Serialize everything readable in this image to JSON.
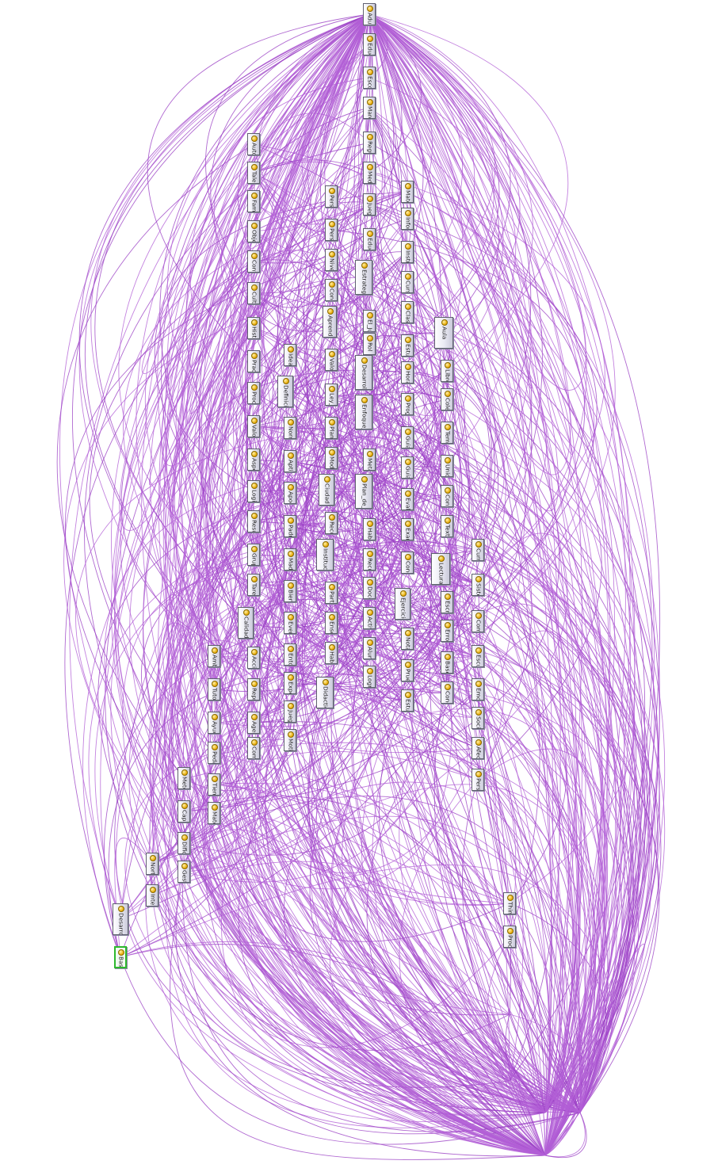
{
  "colors": {
    "edge": "#b25fd6",
    "edge_dark": "#9a3fc4",
    "node_border": "#606070",
    "highlight_border": "#2eb82e",
    "icon": "#e8a800"
  },
  "icon_name": "owl-class-icon",
  "nodes": [
    {
      "id": "n0",
      "label": "Adulto"
    },
    {
      "id": "n1",
      "label": "Educar"
    },
    {
      "id": "n2",
      "label": "Escolar"
    },
    {
      "id": "n3",
      "label": "Marco"
    },
    {
      "id": "n4",
      "label": "Regulatorio"
    },
    {
      "id": "n5",
      "label": "Medio"
    },
    {
      "id": "n6",
      "label": "Juego"
    },
    {
      "id": "n7",
      "label": "Educacion"
    },
    {
      "id": "n8",
      "label": "Estrategia_de_la_Clase"
    },
    {
      "id": "n9",
      "label": "El_Juego"
    },
    {
      "id": "n10",
      "label": "Rol"
    },
    {
      "id": "n11",
      "label": "Desarrollo_en_el_Aula"
    },
    {
      "id": "n12",
      "label": "Enfoque_de_la_Escuela_Basica"
    },
    {
      "id": "n13",
      "label": "Meta"
    },
    {
      "id": "n14",
      "label": "Plan_de_Enseñanza"
    },
    {
      "id": "n15",
      "label": "Habito"
    },
    {
      "id": "n16",
      "label": "Recurso"
    },
    {
      "id": "n17",
      "label": "Docente"
    },
    {
      "id": "n18",
      "label": "Actividad"
    },
    {
      "id": "n19",
      "label": "Alumno"
    },
    {
      "id": "n20",
      "label": "Logro"
    },
    {
      "id": "n21",
      "label": "Auto"
    },
    {
      "id": "n22",
      "label": "Talento"
    },
    {
      "id": "n23",
      "label": "Familia"
    },
    {
      "id": "n24",
      "label": "Objetivo"
    },
    {
      "id": "n25",
      "label": "Contexto"
    },
    {
      "id": "n26",
      "label": "Cultura"
    },
    {
      "id": "n27",
      "label": "Historia"
    },
    {
      "id": "n28",
      "label": "Practica"
    },
    {
      "id": "n29",
      "label": "Proceso"
    },
    {
      "id": "n30",
      "label": "Valor_de"
    },
    {
      "id": "n31",
      "label": "Aspecto"
    },
    {
      "id": "n32",
      "label": "Logica"
    },
    {
      "id": "n33",
      "label": "Resultado"
    },
    {
      "id": "n34",
      "label": "Grupo_de_Trabajo"
    },
    {
      "id": "n35",
      "label": "Tarea"
    },
    {
      "id": "n36",
      "label": "Calidad"
    },
    {
      "id": "n37",
      "label": "Accion"
    },
    {
      "id": "n38",
      "label": "Representacion"
    },
    {
      "id": "n39",
      "label": "Agente"
    },
    {
      "id": "n40",
      "label": "Comunicacion"
    },
    {
      "id": "n41",
      "label": "Persona"
    },
    {
      "id": "n42",
      "label": "Persona_fis"
    },
    {
      "id": "n43",
      "label": "Nivel"
    },
    {
      "id": "n44",
      "label": "Conocimiento"
    },
    {
      "id": "n45",
      "label": "Aprendizaje_Significativo"
    },
    {
      "id": "n46",
      "label": "Valor"
    },
    {
      "id": "n47",
      "label": "Ley_Padre"
    },
    {
      "id": "n48",
      "label": "Planificacion"
    },
    {
      "id": "n49",
      "label": "Modelo"
    },
    {
      "id": "n50",
      "label": "Ciudad"
    },
    {
      "id": "n51",
      "label": "Recursos_Humanos"
    },
    {
      "id": "n52",
      "label": "Institucion"
    },
    {
      "id": "n53",
      "label": "Participacion"
    },
    {
      "id": "n54",
      "label": "Ensenanza"
    },
    {
      "id": "n55",
      "label": "Habilidad"
    },
    {
      "id": "n56",
      "label": "Didactica"
    },
    {
      "id": "n57",
      "label": "Materia"
    },
    {
      "id": "n58",
      "label": "Informacion"
    },
    {
      "id": "n59",
      "label": "Instruccion"
    },
    {
      "id": "n60",
      "label": "Curso"
    },
    {
      "id": "n61",
      "label": "Clase"
    },
    {
      "id": "n62",
      "label": "Estudio_Propio"
    },
    {
      "id": "n63",
      "label": "Horario_de_Clase"
    },
    {
      "id": "n64",
      "label": "Programa"
    },
    {
      "id": "n65",
      "label": "Guia"
    },
    {
      "id": "n66",
      "label": "Guia_2"
    },
    {
      "id": "n67",
      "label": "Evaluacion_Final"
    },
    {
      "id": "n68",
      "label": "Examen"
    },
    {
      "id": "n69",
      "label": "Conclusion_Final"
    },
    {
      "id": "n70",
      "label": "Ejercicio"
    },
    {
      "id": "n71",
      "label": "Nota"
    },
    {
      "id": "n72",
      "label": "Prueba"
    },
    {
      "id": "n73",
      "label": "Estudiante"
    },
    {
      "id": "n74",
      "label": "Aula"
    },
    {
      "id": "n75",
      "label": "Libro"
    },
    {
      "id": "n76",
      "label": "Colegio"
    },
    {
      "id": "n77",
      "label": "Tema"
    },
    {
      "id": "n78",
      "label": "Unidad"
    },
    {
      "id": "n79",
      "label": "Contenido"
    },
    {
      "id": "n80",
      "label": "Texto"
    },
    {
      "id": "n81",
      "label": "Lectura"
    },
    {
      "id": "n82",
      "label": "Escritura"
    },
    {
      "id": "n83",
      "label": "Error"
    },
    {
      "id": "n84",
      "label": "Base_de_Datos_del_Estudiante"
    },
    {
      "id": "n85",
      "label": "Concepto"
    },
    {
      "id": "n86",
      "label": "Idea"
    },
    {
      "id": "n87",
      "label": "Definicion"
    },
    {
      "id": "n88",
      "label": "Norma"
    },
    {
      "id": "n89",
      "label": "Aptitud"
    },
    {
      "id": "n90",
      "label": "Apoderado"
    },
    {
      "id": "n91",
      "label": "Padre"
    },
    {
      "id": "n92",
      "label": "Madre"
    },
    {
      "id": "n93",
      "label": "Bienestar"
    },
    {
      "id": "n94",
      "label": "Evento"
    },
    {
      "id": "n95",
      "label": "Entorno"
    },
    {
      "id": "n96",
      "label": "Experiencia"
    },
    {
      "id": "n97",
      "label": "Juego_de_Roles"
    },
    {
      "id": "n98",
      "label": "Motivacion"
    },
    {
      "id": "n99",
      "label": "Curriculum"
    },
    {
      "id": "n100",
      "label": "Sistema"
    },
    {
      "id": "n101",
      "label": "Comunidad"
    },
    {
      "id": "n102",
      "label": "Escuela"
    },
    {
      "id": "n103",
      "label": "Emocion"
    },
    {
      "id": "n104",
      "label": "Social"
    },
    {
      "id": "n105",
      "label": "Afecto"
    },
    {
      "id": "n106",
      "label": "Personas"
    },
    {
      "id": "n107",
      "label": "Ambiente"
    },
    {
      "id": "n108",
      "label": "Tutor"
    },
    {
      "id": "n109",
      "label": "Ayuda"
    },
    {
      "id": "n110",
      "label": "Pedagogia"
    },
    {
      "id": "n111",
      "label": "Tiempo"
    },
    {
      "id": "n112",
      "label": "Material"
    },
    {
      "id": "n113",
      "label": "Metodo"
    },
    {
      "id": "n114",
      "label": "Capacidad"
    },
    {
      "id": "n115",
      "label": "Dificultad"
    },
    {
      "id": "n116",
      "label": "Gestion"
    },
    {
      "id": "n117",
      "label": "Norte"
    },
    {
      "id": "n118",
      "label": "Inteligencia"
    },
    {
      "id": "n119",
      "label": "Desarrollo"
    },
    {
      "id": "n120",
      "label": "Base_de_Conocimiento_de_Datos"
    },
    {
      "id": "n121",
      "label": "Thing"
    },
    {
      "id": "n122",
      "label": "Procesamiento_de_Datos"
    }
  ],
  "edge_seed": 7351,
  "edge_count": 760
}
